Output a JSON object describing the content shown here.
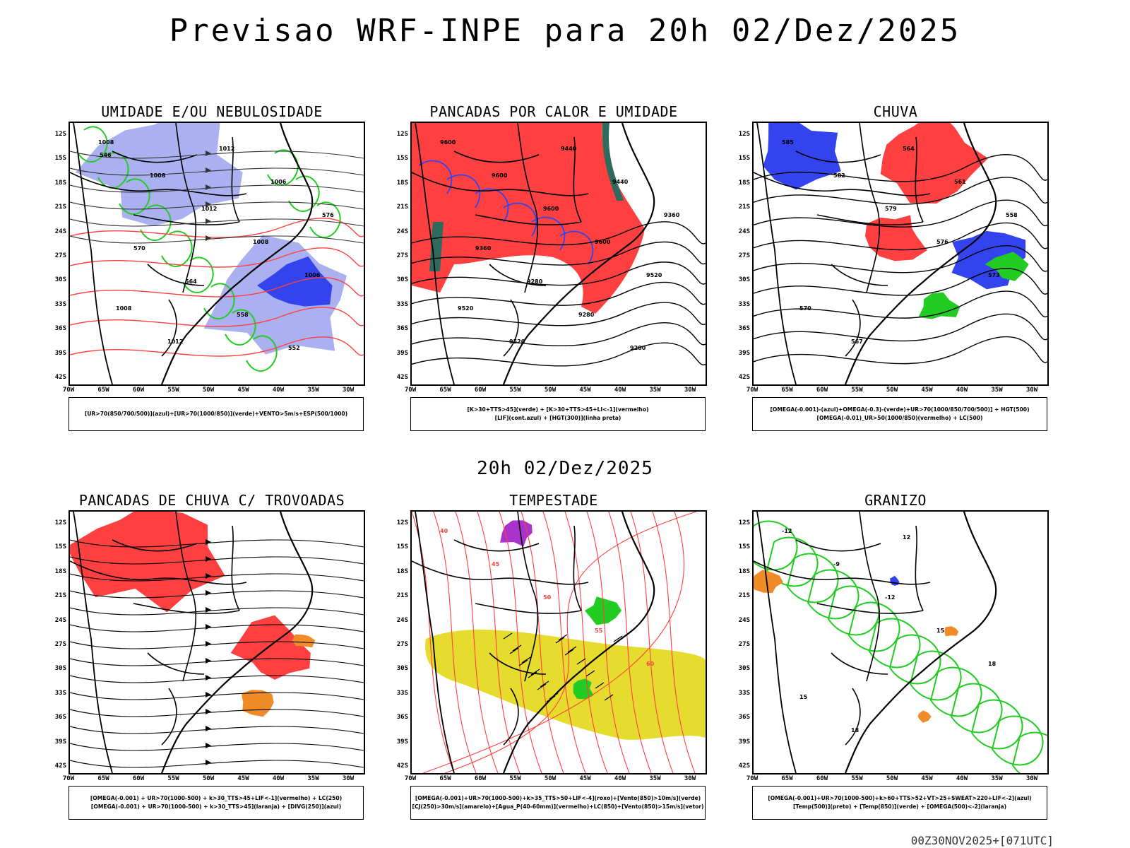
{
  "page": {
    "title": "Previsao WRF-INPE  para 20h 02/Dez/2025",
    "mid_title": "20h 02/Dez/2025",
    "footer": "00Z30NOV2025+[071UTC]"
  },
  "axes": {
    "lat_labels": [
      "12S",
      "15S",
      "18S",
      "21S",
      "24S",
      "27S",
      "30S",
      "33S",
      "36S",
      "39S",
      "42S"
    ],
    "lon_labels": [
      "70W",
      "65W",
      "60W",
      "55W",
      "50W",
      "45W",
      "40W",
      "35W",
      "30W"
    ]
  },
  "colors": {
    "red": "#ff4040",
    "green": "#22cc22",
    "blue": "#3344ee",
    "lavender": "#aab0f0",
    "teal": "#2e6b5e",
    "yellow": "#e6dc2e",
    "orange": "#f08c28",
    "purple": "#aa33cc"
  },
  "panels": [
    {
      "id": "umidade",
      "title": "UMIDADE E/OU NEBULOSIDADE",
      "legend": [
        "[UR>70(850/700/500)](azul)+[UR>70(1000/850)](verde)+VENTO>5m/s+ESP(500/1000)"
      ],
      "contour_labels": [
        "1008",
        "1008",
        "1012",
        "1008",
        "1006",
        "1008",
        "1012",
        "1012",
        "1006",
        "576",
        "570",
        "564",
        "558",
        "552",
        "546"
      ]
    },
    {
      "id": "pancadas-calor",
      "title": "PANCADAS POR CALOR E UMIDADE",
      "legend": [
        "[K>30+TTS>45](verde) + [K>30+TTS>45+LI<-1](vermelho)",
        "[LIF](cont.azul) + [HGT(300)](linha preta)"
      ],
      "contour_labels": [
        "9600",
        "9600",
        "9600",
        "9600",
        "9520",
        "9520",
        "9520",
        "9440",
        "9440",
        "9360",
        "9360",
        "9280",
        "9280",
        "9200"
      ]
    },
    {
      "id": "chuva",
      "title": "CHUVA",
      "legend": [
        "[OMEGA(-0.001)-(azul)+OMEGA(-0.3)-(verde)+UR>70(1000/850/700/500)] + HGT(500)",
        "[OMEGA(-0.01)_UR>50(1000/850)(vermelho) + LC(500)"
      ],
      "contour_labels": [
        "585",
        "582",
        "579",
        "576",
        "573",
        "570",
        "567",
        "564",
        "561",
        "558"
      ]
    },
    {
      "id": "pancadas-trovoadas",
      "title": "PANCADAS DE CHUVA C/ TROVOADAS",
      "legend": [
        "[OMEGA(-0.001) + UR>70(1000-500) + k>30_TTS>45+LIF<-1](vermelho) + LC(250)",
        "[OMEGA(-0.001) + UR>70(1000-500) + k>30_TTS>45](laranja) + [DIVG(250)](azul)"
      ],
      "contour_labels": []
    },
    {
      "id": "tempestade",
      "title": "TEMPESTADE",
      "legend": [
        "[OMEGA(-0.001)+UR>70(1000-500)+k>35_TTS>50+LIF<-4](roxo)+[Vento(850)>10m/s](verde)",
        "[CJ(250)>30m/s](amarelo)+[Agua_P(40-60mm)](vermelho)+LC(850)+[Vento(850)>15m/s](vetor)"
      ],
      "contour_labels": [
        "40",
        "45",
        "50",
        "55",
        "60"
      ]
    },
    {
      "id": "granizo",
      "title": "GRANIZO",
      "legend": [
        "[OMEGA(-0.001)+UR>70(1000-500)+k>60+TTS>52+VT>25+SWEAT>220+LIF<-2](azul)",
        "[Temp(500)](preto) + [Temp(850)](verde) + [OMEGA(500)<-2](laranja)"
      ],
      "contour_labels": [
        "-12",
        "-9",
        "-12",
        "15",
        "18",
        "15",
        "18",
        "12"
      ]
    }
  ]
}
